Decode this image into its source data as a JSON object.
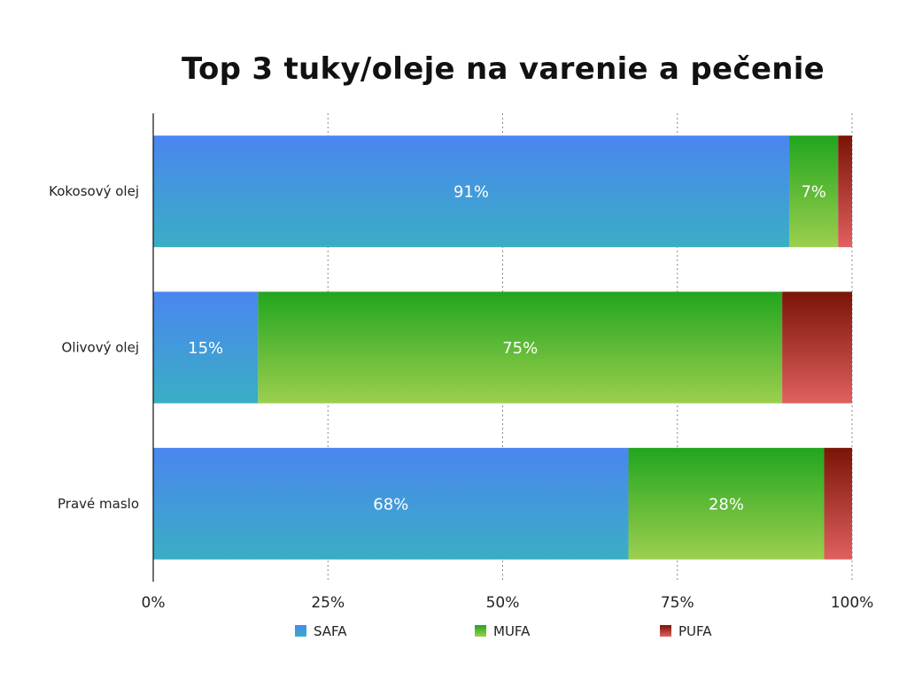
{
  "chart_data": {
    "type": "bar",
    "orientation": "horizontal",
    "stacked": true,
    "title": "Top 3 tuky/oleje na varenie a pečenie",
    "categories": [
      "Kokosový olej",
      "Olivový olej",
      "Pravé maslo"
    ],
    "series": [
      {
        "name": "SAFA",
        "values": [
          91,
          15,
          68
        ],
        "labels": [
          "91%",
          "15%",
          "68%"
        ]
      },
      {
        "name": "MUFA",
        "values": [
          7,
          75,
          28
        ],
        "labels": [
          "7%",
          "75%",
          "28%"
        ]
      },
      {
        "name": "PUFA",
        "values": [
          2,
          10,
          4
        ],
        "labels": [
          "",
          "",
          ""
        ]
      }
    ],
    "xlim": [
      0,
      100
    ],
    "xticks": [
      "0%",
      "25%",
      "50%",
      "75%",
      "100%"
    ],
    "xtick_values": [
      0,
      25,
      50,
      75,
      100
    ],
    "grid": "vertical-dotted",
    "legend_position": "bottom",
    "colors": {
      "SAFA": {
        "top": "#4a86f0",
        "bottom": "#3aaec4",
        "legend": "#3f8ee6"
      },
      "MUFA": {
        "top": "#22a51f",
        "bottom": "#9ccf4e",
        "legend": "#3aaa2a"
      },
      "PUFA": {
        "top": "#7a1406",
        "bottom": "#e06060",
        "legend": "#b0302a"
      }
    }
  }
}
